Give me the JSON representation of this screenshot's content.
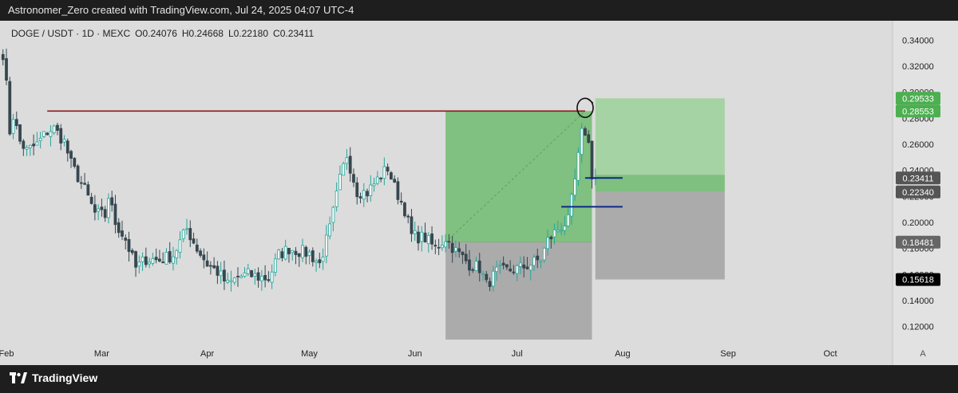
{
  "header": {
    "caption": "Astronomer_Zero created with TradingView.com, Jul 24, 2025 04:07 UTC-4"
  },
  "legend": {
    "symbol": "DOGE / USDT · 1D · MEXC",
    "open_label": "O",
    "open": "0.24076",
    "high_label": "H",
    "high": "0.24668",
    "low_label": "L",
    "low": "0.22180",
    "close_label": "C",
    "close": "0.23411"
  },
  "footer": {
    "brand": "TradingView"
  },
  "scale_button": "A",
  "colors": {
    "up": "#26a69a",
    "down": "#37474f",
    "resistance": "#8b1a1a",
    "target": "#4caf50",
    "level_line": "#0d2a8a",
    "background": "#dcdcdc"
  },
  "chart_data": {
    "type": "candlestick",
    "title": "DOGE / USDT · 1D · MEXC",
    "x_ticks": [
      "Feb",
      "Mar",
      "Apr",
      "May",
      "Jun",
      "Jul",
      "Aug",
      "Sep",
      "Oct"
    ],
    "y_ticks": [
      "0.34000",
      "0.32000",
      "0.30000",
      "0.28000",
      "0.26000",
      "0.24000",
      "0.22000",
      "0.20000",
      "0.18000",
      "0.16000",
      "0.14000",
      "0.12000"
    ],
    "ylim": [
      0.11,
      0.35
    ],
    "grid": false,
    "price_badges": [
      {
        "value": "0.29533",
        "color": "#4caf50",
        "text_color": "#ffffff"
      },
      {
        "value": "0.28553",
        "color": "#4caf50",
        "text_color": "#ffffff"
      },
      {
        "value": "0.23411",
        "color": "#555555",
        "text_color": "#ffffff"
      },
      {
        "value": "0.22340",
        "color": "#555555",
        "text_color": "#ffffff"
      },
      {
        "value": "0.18481",
        "color": "#666666",
        "text_color": "#ffffff"
      },
      {
        "value": "0.15618",
        "color": "#000000",
        "text_color": "#ffffff"
      }
    ],
    "anchors": [
      {
        "date": "2025-01-31",
        "close": 0.33
      },
      {
        "date": "2025-02-01",
        "close": 0.305
      },
      {
        "date": "2025-02-02",
        "close": 0.27
      },
      {
        "date": "2025-02-03",
        "close": 0.282
      },
      {
        "date": "2025-02-05",
        "close": 0.262
      },
      {
        "date": "2025-02-07",
        "close": 0.255
      },
      {
        "date": "2025-02-10",
        "close": 0.26
      },
      {
        "date": "2025-02-13",
        "close": 0.27
      },
      {
        "date": "2025-02-15",
        "close": 0.272
      },
      {
        "date": "2025-02-18",
        "close": 0.262
      },
      {
        "date": "2025-02-20",
        "close": 0.245
      },
      {
        "date": "2025-02-24",
        "close": 0.225
      },
      {
        "date": "2025-02-27",
        "close": 0.207
      },
      {
        "date": "2025-03-02",
        "close": 0.205
      },
      {
        "date": "2025-03-03",
        "close": 0.22
      },
      {
        "date": "2025-03-05",
        "close": 0.2
      },
      {
        "date": "2025-03-08",
        "close": 0.187
      },
      {
        "date": "2025-03-11",
        "close": 0.165
      },
      {
        "date": "2025-03-14",
        "close": 0.172
      },
      {
        "date": "2025-03-18",
        "close": 0.171
      },
      {
        "date": "2025-03-22",
        "close": 0.175
      },
      {
        "date": "2025-03-26",
        "close": 0.195
      },
      {
        "date": "2025-03-29",
        "close": 0.18
      },
      {
        "date": "2025-04-01",
        "close": 0.168
      },
      {
        "date": "2025-04-04",
        "close": 0.162
      },
      {
        "date": "2025-04-07",
        "close": 0.152
      },
      {
        "date": "2025-04-10",
        "close": 0.158
      },
      {
        "date": "2025-04-13",
        "close": 0.16
      },
      {
        "date": "2025-04-16",
        "close": 0.158
      },
      {
        "date": "2025-04-19",
        "close": 0.157
      },
      {
        "date": "2025-04-22",
        "close": 0.175
      },
      {
        "date": "2025-04-25",
        "close": 0.18
      },
      {
        "date": "2025-04-28",
        "close": 0.178
      },
      {
        "date": "2025-05-01",
        "close": 0.176
      },
      {
        "date": "2025-05-04",
        "close": 0.168
      },
      {
        "date": "2025-05-07",
        "close": 0.195
      },
      {
        "date": "2025-05-10",
        "close": 0.233
      },
      {
        "date": "2025-05-12",
        "close": 0.252
      },
      {
        "date": "2025-05-15",
        "close": 0.224
      },
      {
        "date": "2025-05-18",
        "close": 0.223
      },
      {
        "date": "2025-05-21",
        "close": 0.233
      },
      {
        "date": "2025-05-24",
        "close": 0.242
      },
      {
        "date": "2025-05-26",
        "close": 0.227
      },
      {
        "date": "2025-05-29",
        "close": 0.21
      },
      {
        "date": "2025-05-31",
        "close": 0.19
      },
      {
        "date": "2025-06-04",
        "close": 0.188
      },
      {
        "date": "2025-06-07",
        "close": 0.18
      },
      {
        "date": "2025-06-10",
        "close": 0.188
      },
      {
        "date": "2025-06-13",
        "close": 0.178
      },
      {
        "date": "2025-06-17",
        "close": 0.168
      },
      {
        "date": "2025-06-20",
        "close": 0.165
      },
      {
        "date": "2025-06-22",
        "close": 0.152
      },
      {
        "date": "2025-06-25",
        "close": 0.162
      },
      {
        "date": "2025-06-28",
        "close": 0.163
      },
      {
        "date": "2025-07-02",
        "close": 0.165
      },
      {
        "date": "2025-07-05",
        "close": 0.168
      },
      {
        "date": "2025-07-08",
        "close": 0.172
      },
      {
        "date": "2025-07-10",
        "close": 0.186
      },
      {
        "date": "2025-07-13",
        "close": 0.195
      },
      {
        "date": "2025-07-16",
        "close": 0.201
      },
      {
        "date": "2025-07-18",
        "close": 0.232
      },
      {
        "date": "2025-07-20",
        "close": 0.268
      },
      {
        "date": "2025-07-21",
        "close": 0.27
      },
      {
        "date": "2025-07-22",
        "close": 0.26
      },
      {
        "date": "2025-07-23",
        "close": 0.237
      },
      {
        "date": "2025-07-24",
        "close": 0.23411
      }
    ],
    "annotations": [
      {
        "type": "horizontal_line",
        "price": 0.28553,
        "from": "2025-02-13",
        "to": "2025-07-21",
        "color": "#8b1a1a"
      },
      {
        "type": "long_position",
        "entry": 0.18481,
        "target": 0.28553,
        "stop": 0.11,
        "from": "2025-06-10",
        "to": "2025-07-23"
      },
      {
        "type": "long_position",
        "entry": 0.2234,
        "target": 0.29533,
        "stop": 0.15618,
        "from": "2025-07-24",
        "to": "2025-08-31"
      },
      {
        "type": "horizontal_line",
        "price": 0.23411,
        "from": "2025-07-21",
        "to": "2025-08-01",
        "color": "#0d2a8a"
      },
      {
        "type": "horizontal_line",
        "price": 0.212,
        "from": "2025-07-14",
        "to": "2025-08-01",
        "color": "#0d2a8a"
      },
      {
        "type": "circle_mark",
        "price": 0.288,
        "date": "2025-07-21"
      }
    ]
  }
}
